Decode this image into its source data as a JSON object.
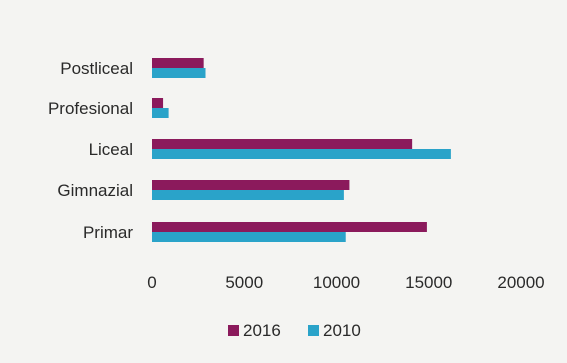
{
  "chart_data": {
    "type": "bar",
    "orientation": "horizontal",
    "title": "",
    "xlabel": "",
    "ylabel": "",
    "categories": [
      "Primar",
      "Gimnazial",
      "Liceal",
      "Profesional",
      "Postliceal"
    ],
    "series": [
      {
        "name": "2016",
        "color": "#8b1a5c",
        "values": [
          14900,
          10700,
          14100,
          600,
          2800
        ]
      },
      {
        "name": "2010",
        "color": "#2aa3c9",
        "values": [
          10500,
          10400,
          16200,
          900,
          2900
        ]
      }
    ],
    "xlim": [
      0,
      20000
    ],
    "xticks": [
      "0",
      "5000",
      "10000",
      "15000",
      "20000"
    ],
    "grid": false,
    "legend_position": "bottom"
  }
}
